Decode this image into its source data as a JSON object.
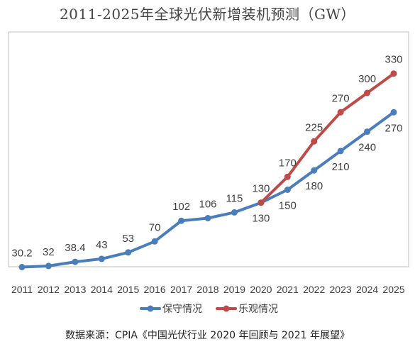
{
  "title": "2011-2025年全球光伏新增装机预测（GW）",
  "source": "数据来源：CPIA《中国光伏行业 2020 年回顾与 2021 年展望》",
  "colors": {
    "conservative": "#4a7ebb",
    "optimistic": "#be4b48",
    "label": "#404040",
    "frame": "#bfbfbf"
  },
  "chart_data": {
    "type": "line",
    "title": "2011-2025年全球光伏新增装机预测（GW）",
    "xlabel": "",
    "ylabel": "",
    "ylim": [
      0,
      350
    ],
    "grid": false,
    "legend_position": "bottom",
    "categories": [
      "2011",
      "2012",
      "2013",
      "2014",
      "2015",
      "2016",
      "2017",
      "2018",
      "2019",
      "2020",
      "2021",
      "2022",
      "2023",
      "2024",
      "2025"
    ],
    "series": [
      {
        "name": "保守情况",
        "color": "#4a7ebb",
        "values": [
          30.2,
          32,
          38.4,
          43,
          53,
          70,
          102,
          106,
          115,
          130,
          150,
          180,
          210,
          240,
          270
        ],
        "labels": [
          "30.2",
          "32",
          "38.4",
          "43",
          "53",
          "70",
          "102",
          "106",
          "115",
          "130",
          "150",
          "180",
          "210",
          "240",
          "270"
        ],
        "label_position": [
          "above",
          "above",
          "above",
          "above",
          "above",
          "above",
          "above",
          "above",
          "above",
          "below",
          "below",
          "below",
          "below",
          "below",
          "below"
        ]
      },
      {
        "name": "乐观情况",
        "color": "#be4b48",
        "values": [
          null,
          null,
          null,
          null,
          null,
          null,
          null,
          null,
          null,
          130,
          170,
          225,
          270,
          300,
          330
        ],
        "labels": [
          null,
          null,
          null,
          null,
          null,
          null,
          null,
          null,
          null,
          "130",
          "170",
          "225",
          "270",
          "300",
          "330"
        ],
        "label_position": [
          null,
          null,
          null,
          null,
          null,
          null,
          null,
          null,
          null,
          "above",
          "above",
          "above",
          "above",
          "above",
          "above"
        ]
      }
    ]
  }
}
